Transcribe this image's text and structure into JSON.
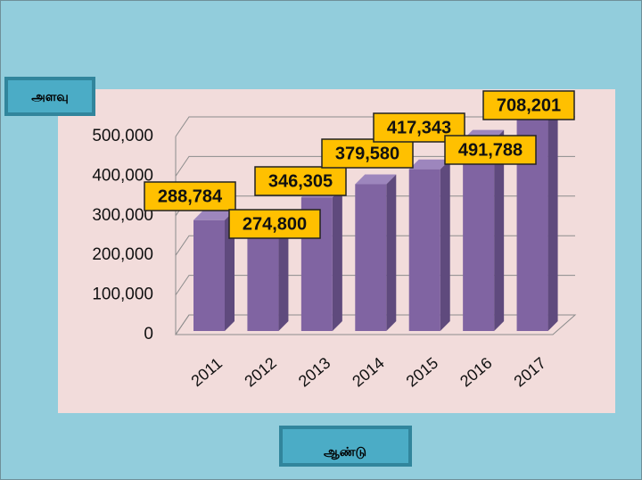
{
  "chart_data": {
    "type": "bar3d",
    "y_axis_label": "அளவு",
    "x_axis_label": "ஆண்டு",
    "categories": [
      "2011",
      "2012",
      "2013",
      "2014",
      "2015",
      "2016",
      "2017"
    ],
    "values": [
      288784,
      274800,
      346305,
      379580,
      417343,
      491788,
      708201
    ],
    "value_labels": [
      "288,784",
      "274,800",
      "346,305",
      "379,580",
      "417,343",
      "491,788",
      "708,201"
    ],
    "color": "#8064a2",
    "ylim": [
      0,
      500000
    ],
    "yticks": [
      0,
      {
        "value": 100000,
        "label": "100,000"
      },
      {
        "value": 200000,
        "label": "200,000"
      },
      {
        "value": 300000,
        "label": "300,000"
      },
      {
        "value": 400000,
        "label": "400,000"
      },
      {
        "value": 500000,
        "label": "500,000"
      }
    ],
    "grid": true
  }
}
